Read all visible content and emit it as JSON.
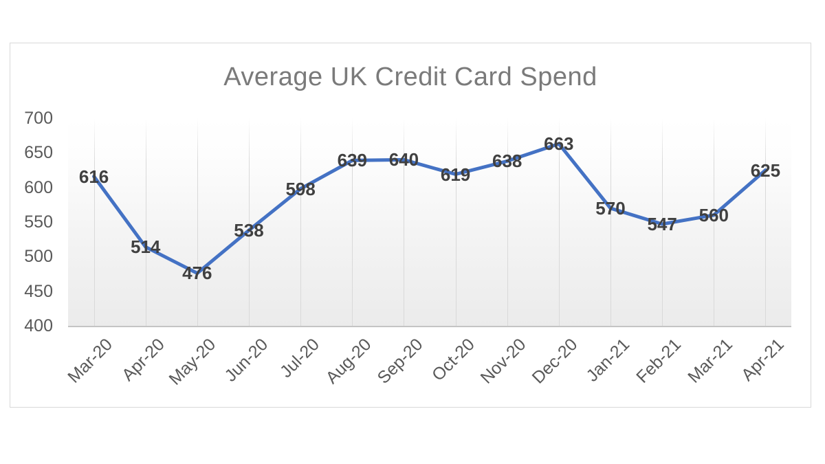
{
  "chart_data": {
    "type": "line",
    "title": "Average UK Credit Card Spend",
    "categories": [
      "Mar-20",
      "Apr-20",
      "May-20",
      "Jun-20",
      "Jul-20",
      "Aug-20",
      "Sep-20",
      "Oct-20",
      "Nov-20",
      "Dec-20",
      "Jan-21",
      "Feb-21",
      "Mar-21",
      "Apr-21"
    ],
    "values": [
      616,
      514,
      476,
      538,
      598,
      639,
      640,
      619,
      638,
      663,
      570,
      547,
      560,
      625
    ],
    "ylim": [
      400,
      700
    ],
    "yticks": [
      400,
      450,
      500,
      550,
      600,
      650,
      700
    ],
    "grid": "vertical",
    "legend_position": "none",
    "data_labels": "center",
    "colors": {
      "line": "#4472C4",
      "data_label_text": "#404040",
      "axis_text": "#595959",
      "title_text": "#7A7A7A",
      "gridline": "#D9D9D9",
      "axis_line": "#C4C4C4",
      "card_border": "#D8D8D8",
      "plot_fill_bottom": "#EBEBEB",
      "plot_fill_top": "#FFFFFF"
    }
  }
}
